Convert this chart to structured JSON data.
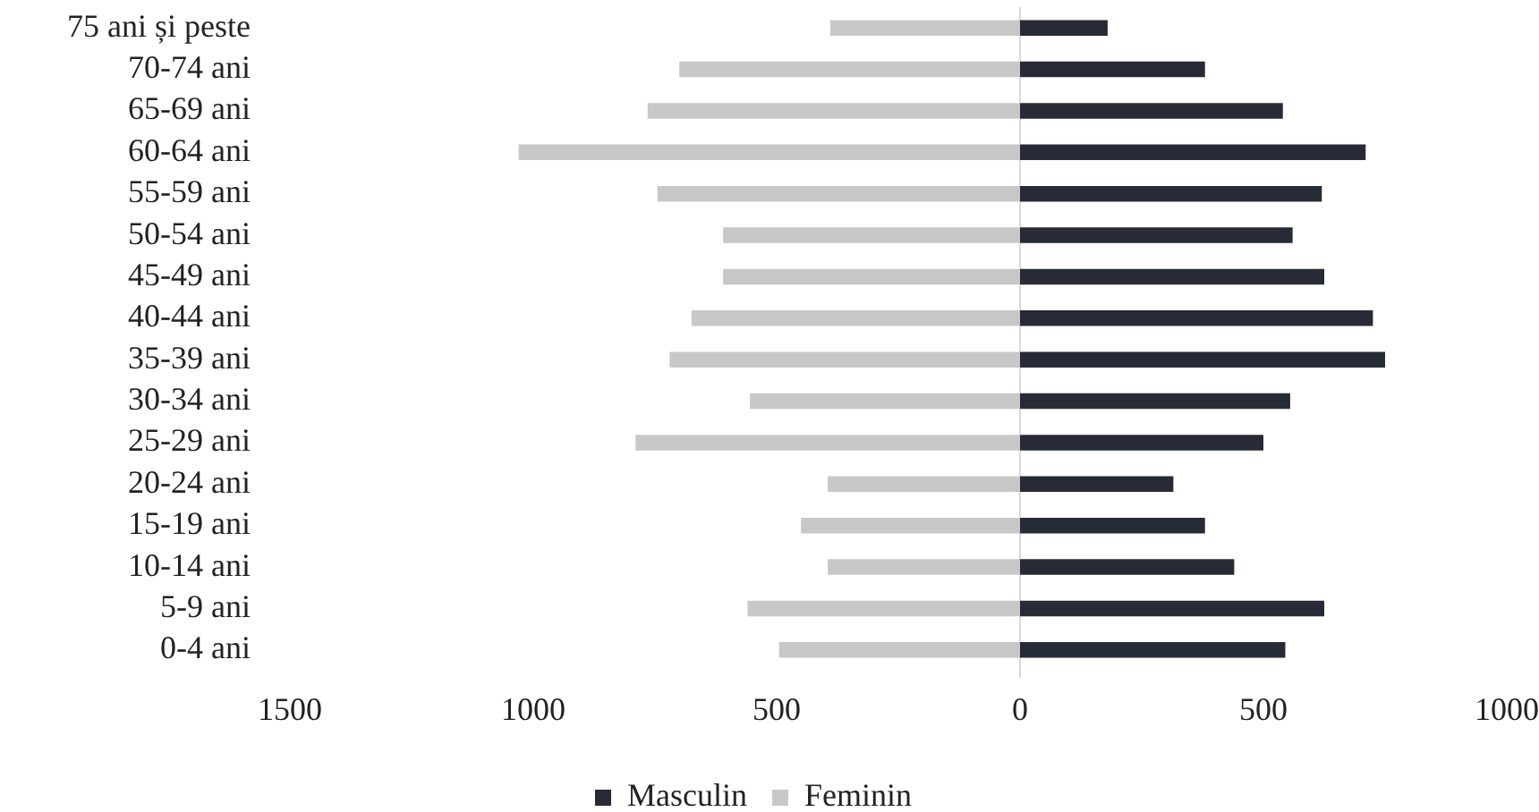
{
  "chart_data": {
    "type": "bar",
    "orientation": "horizontal",
    "stacked": true,
    "categories": [
      "75 ani și peste",
      "70-74 ani",
      "65-69 ani",
      "60-64 ani",
      "55-59 ani",
      "50-54 ani",
      "45-49 ani",
      "40-44 ani",
      "35-39 ani",
      "30-34 ani",
      "25-29 ani",
      "20-24 ani",
      "15-19 ani",
      "10-14 ani",
      "5-9 ani",
      "0-4 ani"
    ],
    "series": [
      {
        "name": "Masculin",
        "color": "#262b35",
        "values": [
          180,
          380,
          540,
          710,
          620,
          560,
          625,
          725,
          750,
          555,
          500,
          315,
          380,
          440,
          625,
          545
        ]
      },
      {
        "name": "Feminin",
        "color": "#c8c8c8",
        "values": [
          -390,
          -700,
          -765,
          -1030,
          -745,
          -610,
          -610,
          -675,
          -720,
          -555,
          -790,
          -395,
          -450,
          -395,
          -560,
          -495
        ]
      }
    ],
    "xlim": [
      -1500,
      1000
    ],
    "xticks": [
      {
        "value": -1500,
        "label": "1500"
      },
      {
        "value": -1000,
        "label": "1000"
      },
      {
        "value": -500,
        "label": "500"
      },
      0,
      500,
      1000
    ],
    "ref_lines": [
      {
        "axis": "x",
        "value": 0,
        "color": "#dadada"
      }
    ],
    "legend": "bottom"
  }
}
